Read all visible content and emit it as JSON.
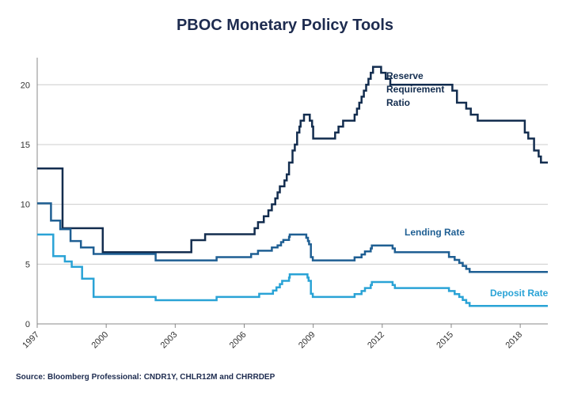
{
  "chart_data": {
    "type": "line",
    "title": "PBOC Monetary Policy Tools",
    "source": "Source: Bloomberg Professional: CNDR1Y, CHLR12M and CHRRDEP",
    "xlim": [
      1997,
      2019.2
    ],
    "ylim": [
      0,
      22
    ],
    "x_ticks": [
      1997,
      2000,
      2003,
      2006,
      2009,
      2012,
      2015,
      2018
    ],
    "x_tick_labels": [
      "1997",
      "2000",
      "2003",
      "2006",
      "2009",
      "2012",
      "2015",
      "2018"
    ],
    "y_ticks": [
      0,
      5,
      10,
      15,
      20
    ],
    "y_tick_labels": [
      "0",
      "5",
      "10",
      "15",
      "20"
    ],
    "grid": true,
    "colors": {
      "title": "#1d2b4f",
      "grid": "#cccccc",
      "axis": "#888888"
    },
    "series": [
      {
        "name": "Reserve Requirement Ratio",
        "label_lines": [
          "Reserve",
          "Requirement",
          "Ratio"
        ],
        "color": "#132d4f",
        "points": [
          [
            1997.0,
            13
          ],
          [
            1998.1,
            13
          ],
          [
            1998.1,
            8
          ],
          [
            1999.85,
            8
          ],
          [
            1999.85,
            6
          ],
          [
            2003.7,
            6
          ],
          [
            2003.7,
            7
          ],
          [
            2004.3,
            7
          ],
          [
            2004.3,
            7.5
          ],
          [
            2006.45,
            7.5
          ],
          [
            2006.45,
            8
          ],
          [
            2006.6,
            8
          ],
          [
            2006.6,
            8.5
          ],
          [
            2006.85,
            8.5
          ],
          [
            2006.85,
            9
          ],
          [
            2007.05,
            9
          ],
          [
            2007.05,
            9.5
          ],
          [
            2007.2,
            9.5
          ],
          [
            2007.2,
            10
          ],
          [
            2007.35,
            10
          ],
          [
            2007.35,
            10.5
          ],
          [
            2007.45,
            10.5
          ],
          [
            2007.45,
            11
          ],
          [
            2007.55,
            11
          ],
          [
            2007.55,
            11.5
          ],
          [
            2007.75,
            11.5
          ],
          [
            2007.75,
            12
          ],
          [
            2007.85,
            12
          ],
          [
            2007.85,
            12.5
          ],
          [
            2007.95,
            12.5
          ],
          [
            2007.95,
            13.5
          ],
          [
            2008.1,
            13.5
          ],
          [
            2008.1,
            14.5
          ],
          [
            2008.2,
            14.5
          ],
          [
            2008.2,
            15
          ],
          [
            2008.3,
            15
          ],
          [
            2008.3,
            16
          ],
          [
            2008.4,
            16
          ],
          [
            2008.4,
            16.5
          ],
          [
            2008.45,
            16.5
          ],
          [
            2008.45,
            17
          ],
          [
            2008.6,
            17
          ],
          [
            2008.6,
            17.5
          ],
          [
            2008.85,
            17.5
          ],
          [
            2008.85,
            17
          ],
          [
            2008.95,
            17
          ],
          [
            2008.95,
            16.5
          ],
          [
            2009.0,
            16.5
          ],
          [
            2009.0,
            15.5
          ],
          [
            2009.95,
            15.5
          ],
          [
            2009.95,
            16
          ],
          [
            2010.1,
            16
          ],
          [
            2010.1,
            16.5
          ],
          [
            2010.3,
            16.5
          ],
          [
            2010.3,
            17
          ],
          [
            2010.8,
            17
          ],
          [
            2010.8,
            17.5
          ],
          [
            2010.9,
            17.5
          ],
          [
            2010.9,
            18
          ],
          [
            2011.0,
            18
          ],
          [
            2011.0,
            18.5
          ],
          [
            2011.1,
            18.5
          ],
          [
            2011.1,
            19
          ],
          [
            2011.2,
            19
          ],
          [
            2011.2,
            19.5
          ],
          [
            2011.3,
            19.5
          ],
          [
            2011.3,
            20
          ],
          [
            2011.4,
            20
          ],
          [
            2011.4,
            20.5
          ],
          [
            2011.5,
            20.5
          ],
          [
            2011.5,
            21
          ],
          [
            2011.6,
            21
          ],
          [
            2011.6,
            21.5
          ],
          [
            2011.95,
            21.5
          ],
          [
            2011.95,
            21
          ],
          [
            2012.15,
            21
          ],
          [
            2012.15,
            20.5
          ],
          [
            2012.35,
            20.5
          ],
          [
            2012.35,
            20
          ],
          [
            2015.05,
            20
          ],
          [
            2015.05,
            19.5
          ],
          [
            2015.25,
            19.5
          ],
          [
            2015.25,
            18.5
          ],
          [
            2015.65,
            18.5
          ],
          [
            2015.65,
            18
          ],
          [
            2015.85,
            18
          ],
          [
            2015.85,
            17.5
          ],
          [
            2016.15,
            17.5
          ],
          [
            2016.15,
            17
          ],
          [
            2018.2,
            17
          ],
          [
            2018.2,
            16
          ],
          [
            2018.35,
            16
          ],
          [
            2018.35,
            15.5
          ],
          [
            2018.6,
            15.5
          ],
          [
            2018.6,
            14.5
          ],
          [
            2018.8,
            14.5
          ],
          [
            2018.8,
            14
          ],
          [
            2018.9,
            14
          ],
          [
            2018.9,
            13.5
          ],
          [
            2019.2,
            13.5
          ]
        ]
      },
      {
        "name": "Lending Rate",
        "color": "#1f5f93",
        "points": [
          [
            1997.0,
            10.08
          ],
          [
            1997.6,
            10.08
          ],
          [
            1997.6,
            8.64
          ],
          [
            1998.0,
            8.64
          ],
          [
            1998.0,
            7.92
          ],
          [
            1998.45,
            7.92
          ],
          [
            1998.45,
            6.93
          ],
          [
            1998.9,
            6.93
          ],
          [
            1998.9,
            6.39
          ],
          [
            1999.45,
            6.39
          ],
          [
            1999.45,
            5.85
          ],
          [
            2002.15,
            5.85
          ],
          [
            2002.15,
            5.31
          ],
          [
            2004.8,
            5.31
          ],
          [
            2004.8,
            5.58
          ],
          [
            2006.3,
            5.58
          ],
          [
            2006.3,
            5.85
          ],
          [
            2006.6,
            5.85
          ],
          [
            2006.6,
            6.12
          ],
          [
            2007.2,
            6.12
          ],
          [
            2007.2,
            6.39
          ],
          [
            2007.45,
            6.39
          ],
          [
            2007.45,
            6.57
          ],
          [
            2007.6,
            6.57
          ],
          [
            2007.6,
            6.84
          ],
          [
            2007.7,
            6.84
          ],
          [
            2007.7,
            7.02
          ],
          [
            2007.95,
            7.02
          ],
          [
            2007.95,
            7.29
          ],
          [
            2007.98,
            7.29
          ],
          [
            2007.98,
            7.47
          ],
          [
            2008.7,
            7.47
          ],
          [
            2008.7,
            7.2
          ],
          [
            2008.77,
            7.2
          ],
          [
            2008.77,
            6.93
          ],
          [
            2008.82,
            6.93
          ],
          [
            2008.82,
            6.66
          ],
          [
            2008.9,
            6.66
          ],
          [
            2008.9,
            5.58
          ],
          [
            2008.98,
            5.58
          ],
          [
            2008.98,
            5.31
          ],
          [
            2010.8,
            5.31
          ],
          [
            2010.8,
            5.56
          ],
          [
            2011.1,
            5.56
          ],
          [
            2011.1,
            5.81
          ],
          [
            2011.25,
            5.81
          ],
          [
            2011.25,
            6.06
          ],
          [
            2011.5,
            6.06
          ],
          [
            2011.5,
            6.31
          ],
          [
            2011.55,
            6.31
          ],
          [
            2011.55,
            6.56
          ],
          [
            2012.45,
            6.56
          ],
          [
            2012.45,
            6.31
          ],
          [
            2012.55,
            6.31
          ],
          [
            2012.55,
            6.0
          ],
          [
            2014.9,
            6.0
          ],
          [
            2014.9,
            5.6
          ],
          [
            2015.15,
            5.6
          ],
          [
            2015.15,
            5.35
          ],
          [
            2015.35,
            5.35
          ],
          [
            2015.35,
            5.1
          ],
          [
            2015.5,
            5.1
          ],
          [
            2015.5,
            4.85
          ],
          [
            2015.65,
            4.85
          ],
          [
            2015.65,
            4.6
          ],
          [
            2015.8,
            4.6
          ],
          [
            2015.8,
            4.35
          ],
          [
            2019.2,
            4.35
          ]
        ]
      },
      {
        "name": "Deposit Rate",
        "color": "#2aa3d6",
        "points": [
          [
            1997.0,
            7.47
          ],
          [
            1997.7,
            7.47
          ],
          [
            1997.7,
            5.67
          ],
          [
            1998.2,
            5.67
          ],
          [
            1998.2,
            5.22
          ],
          [
            1998.5,
            5.22
          ],
          [
            1998.5,
            4.77
          ],
          [
            1998.95,
            4.77
          ],
          [
            1998.95,
            3.78
          ],
          [
            1999.45,
            3.78
          ],
          [
            1999.45,
            2.25
          ],
          [
            2002.15,
            2.25
          ],
          [
            2002.15,
            1.98
          ],
          [
            2004.8,
            1.98
          ],
          [
            2004.8,
            2.25
          ],
          [
            2006.65,
            2.25
          ],
          [
            2006.65,
            2.52
          ],
          [
            2007.25,
            2.52
          ],
          [
            2007.25,
            2.79
          ],
          [
            2007.4,
            2.79
          ],
          [
            2007.4,
            3.06
          ],
          [
            2007.55,
            3.06
          ],
          [
            2007.55,
            3.33
          ],
          [
            2007.65,
            3.33
          ],
          [
            2007.65,
            3.6
          ],
          [
            2007.95,
            3.6
          ],
          [
            2007.95,
            3.87
          ],
          [
            2007.98,
            3.87
          ],
          [
            2007.98,
            4.14
          ],
          [
            2008.75,
            4.14
          ],
          [
            2008.75,
            3.87
          ],
          [
            2008.8,
            3.87
          ],
          [
            2008.8,
            3.6
          ],
          [
            2008.9,
            3.6
          ],
          [
            2008.9,
            2.52
          ],
          [
            2008.98,
            2.52
          ],
          [
            2008.98,
            2.25
          ],
          [
            2010.8,
            2.25
          ],
          [
            2010.8,
            2.5
          ],
          [
            2011.1,
            2.5
          ],
          [
            2011.1,
            2.75
          ],
          [
            2011.25,
            2.75
          ],
          [
            2011.25,
            3.0
          ],
          [
            2011.5,
            3.0
          ],
          [
            2011.5,
            3.25
          ],
          [
            2011.55,
            3.25
          ],
          [
            2011.55,
            3.5
          ],
          [
            2012.45,
            3.5
          ],
          [
            2012.45,
            3.25
          ],
          [
            2012.55,
            3.25
          ],
          [
            2012.55,
            3.0
          ],
          [
            2014.9,
            3.0
          ],
          [
            2014.9,
            2.75
          ],
          [
            2015.15,
            2.75
          ],
          [
            2015.15,
            2.5
          ],
          [
            2015.35,
            2.5
          ],
          [
            2015.35,
            2.25
          ],
          [
            2015.5,
            2.25
          ],
          [
            2015.5,
            2.0
          ],
          [
            2015.65,
            2.0
          ],
          [
            2015.65,
            1.75
          ],
          [
            2015.8,
            1.75
          ],
          [
            2015.8,
            1.5
          ],
          [
            2019.2,
            1.5
          ]
        ]
      }
    ]
  }
}
